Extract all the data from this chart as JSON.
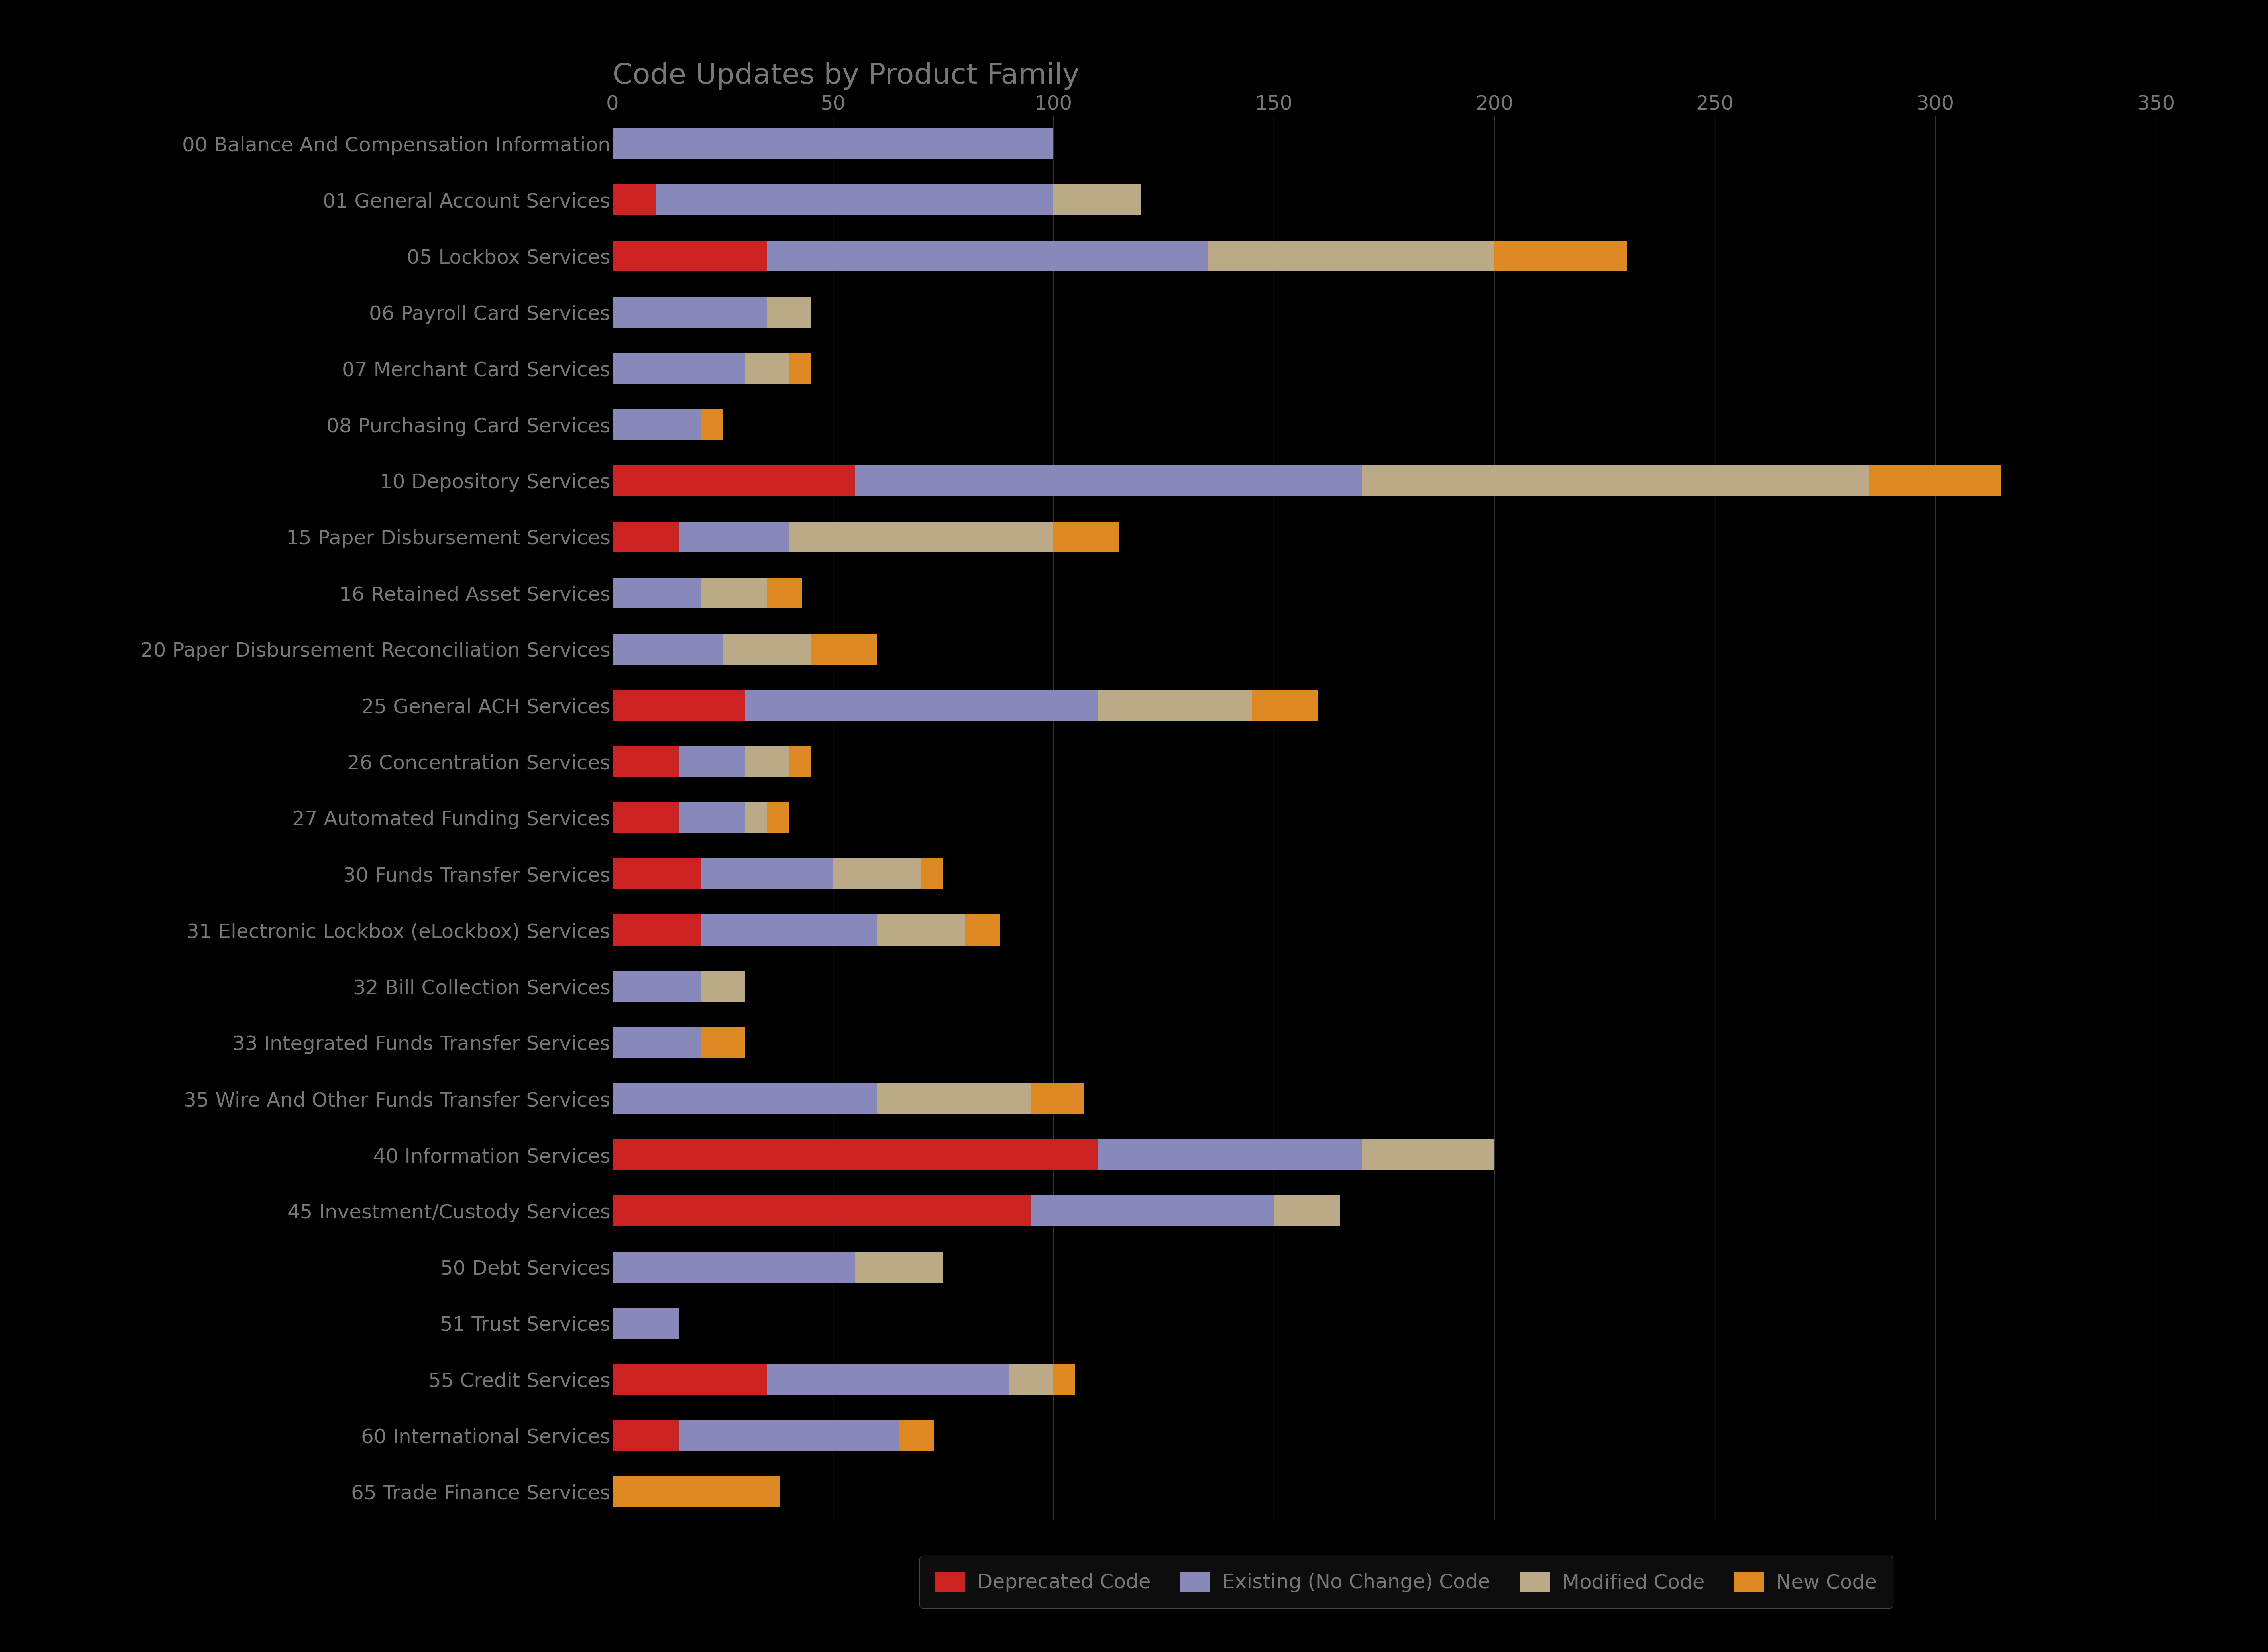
{
  "title": "Code Updates by Product Family",
  "background_color": "#000000",
  "text_color": "#777777",
  "bar_height": 0.55,
  "xlim": [
    0,
    360
  ],
  "xticks": [
    0,
    50,
    100,
    150,
    200,
    250,
    300,
    350
  ],
  "categories": [
    "00 Balance And Compensation Information",
    "01 General Account Services",
    "05 Lockbox Services",
    "06 Payroll Card Services",
    "07 Merchant Card Services",
    "08 Purchasing Card Services",
    "10 Depository Services",
    "15 Paper Disbursement Services",
    "16 Retained Asset Services",
    "20 Paper Disbursement Reconciliation Services",
    "25 General ACH Services",
    "26 Concentration Services",
    "27 Automated Funding Services",
    "30 Funds Transfer Services",
    "31 Electronic Lockbox (eLockbox) Services",
    "32 Bill Collection Services",
    "33 Integrated Funds Transfer Services",
    "35 Wire And Other Funds Transfer Services",
    "40 Information Services",
    "45 Investment/Custody Services",
    "50 Debt Services",
    "51 Trust Services",
    "55 Credit Services",
    "60 International Services",
    "65 Trade Finance Services"
  ],
  "deprecated": [
    0,
    10,
    35,
    0,
    0,
    0,
    55,
    15,
    0,
    0,
    30,
    15,
    15,
    20,
    20,
    0,
    0,
    0,
    110,
    95,
    0,
    0,
    35,
    15,
    0
  ],
  "existing": [
    100,
    90,
    100,
    35,
    30,
    20,
    115,
    25,
    20,
    25,
    80,
    15,
    15,
    30,
    40,
    20,
    20,
    60,
    60,
    55,
    55,
    15,
    55,
    50,
    0
  ],
  "modified": [
    0,
    20,
    65,
    10,
    10,
    0,
    115,
    60,
    15,
    20,
    35,
    10,
    5,
    20,
    20,
    10,
    0,
    35,
    30,
    15,
    20,
    0,
    10,
    0,
    0
  ],
  "new_code": [
    0,
    0,
    30,
    0,
    5,
    5,
    30,
    15,
    8,
    15,
    15,
    5,
    5,
    5,
    8,
    0,
    10,
    12,
    0,
    0,
    0,
    0,
    5,
    8,
    38
  ],
  "colors": {
    "deprecated": "#cc2222",
    "existing": "#8888bb",
    "modified": "#bbaa88",
    "new_code": "#dd8822"
  },
  "legend_labels": [
    "Deprecated Code",
    "Existing (No Change) Code",
    "Modified Code",
    "New Code"
  ],
  "title_fontsize": 52,
  "tick_fontsize": 36,
  "legend_fontsize": 36
}
